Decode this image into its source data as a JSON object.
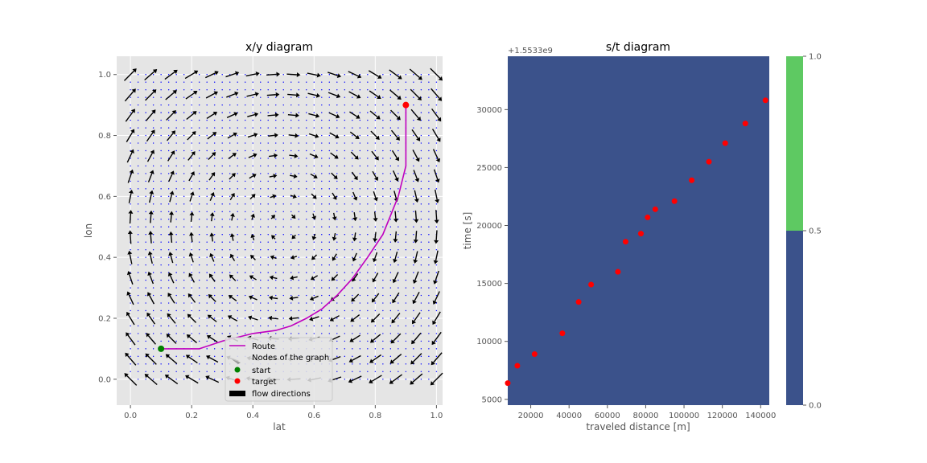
{
  "colors": {
    "axes_bg": "#e5e5e5",
    "grid": "#ffffff",
    "route": "#bf00bf",
    "start": "#008000",
    "target": "#ff0000",
    "node": "#0000ff",
    "arrow": "#000000",
    "cmap_low": "#3b528b",
    "cmap_high": "#5ec962"
  },
  "chart_data": [
    {
      "type": "scatter",
      "title": "x/y diagram",
      "xlabel": "lat",
      "ylabel": "lon",
      "xlim": [
        -0.045,
        1.02
      ],
      "ylim": [
        -0.085,
        1.06
      ],
      "xticks": [
        0.0,
        0.2,
        0.4,
        0.6,
        0.8,
        1.0
      ],
      "yticks": [
        0.0,
        0.2,
        0.4,
        0.6,
        0.8,
        1.0
      ],
      "xtick_labels": [
        "0.0",
        "0.2",
        "0.4",
        "0.6",
        "0.8",
        "1.0"
      ],
      "ytick_labels": [
        "0.0",
        "0.2",
        "0.4",
        "0.6",
        "0.8",
        "1.0"
      ],
      "grid": true,
      "legend_position": "lower-center",
      "legend": [
        {
          "label": "Route",
          "kind": "line"
        },
        {
          "label": "Nodes of the graph",
          "kind": "arrow-gray"
        },
        {
          "label": "start",
          "kind": "dot-green"
        },
        {
          "label": "target",
          "kind": "dot-red"
        },
        {
          "label": "flow directions",
          "kind": "patch-black"
        }
      ],
      "route": {
        "x": [
          0.1,
          0.225,
          0.3,
          0.4,
          0.475,
          0.525,
          0.575,
          0.625,
          0.675,
          0.725,
          0.775,
          0.825,
          0.875,
          0.9,
          0.9
        ],
        "y": [
          0.1,
          0.1,
          0.125,
          0.15,
          0.16,
          0.175,
          0.2,
          0.23,
          0.275,
          0.33,
          0.4,
          0.475,
          0.6,
          0.7,
          0.9
        ]
      },
      "start": {
        "x": 0.1,
        "y": 0.1
      },
      "target": {
        "x": 0.9,
        "y": 0.9
      },
      "nodes": {
        "x_range": [
          0.0,
          1.0
        ],
        "y_range": [
          0.0,
          1.0
        ],
        "count_per_axis": 41
      },
      "flow_field": {
        "x_range": [
          0.0,
          1.0
        ],
        "y_range": [
          0.0,
          1.0
        ],
        "count_per_axis": 16,
        "pattern": "circulation around (0.5, 0.5)"
      }
    },
    {
      "type": "heatmap",
      "title": "s/t diagram",
      "xlabel": "traveled distance [m]",
      "ylabel": "time [s]",
      "offset_label": "+1.5533e9",
      "xlim": [
        8000,
        144500
      ],
      "ylim": [
        4500,
        34600
      ],
      "xticks": [
        20000,
        40000,
        60000,
        80000,
        100000,
        120000,
        140000
      ],
      "yticks": [
        5000,
        10000,
        15000,
        20000,
        25000,
        30000
      ],
      "xtick_labels": [
        "20000",
        "40000",
        "60000",
        "80000",
        "100000",
        "120000",
        "140000"
      ],
      "ytick_labels": [
        "5000",
        "10000",
        "15000",
        "20000",
        "25000",
        "30000"
      ],
      "grid": false,
      "points": {
        "x": [
          8000,
          13000,
          22000,
          36500,
          45000,
          51500,
          65500,
          69500,
          77500,
          81000,
          85000,
          95000,
          104000,
          113000,
          121500,
          132000,
          142500
        ],
        "y": [
          6400,
          7900,
          8900,
          10700,
          13400,
          14900,
          16000,
          18600,
          19300,
          20700,
          21400,
          22100,
          23900,
          25500,
          27100,
          28800,
          30800
        ]
      },
      "colorbar": {
        "ticks": [
          0.0,
          0.5,
          1.0
        ],
        "tick_labels": [
          "0.0",
          "0.5",
          "1.0"
        ],
        "segments": [
          {
            "from": 0.0,
            "to": 0.5,
            "color": "#3b528b"
          },
          {
            "from": 0.5,
            "to": 1.0,
            "color": "#5ec962"
          }
        ]
      }
    }
  ]
}
